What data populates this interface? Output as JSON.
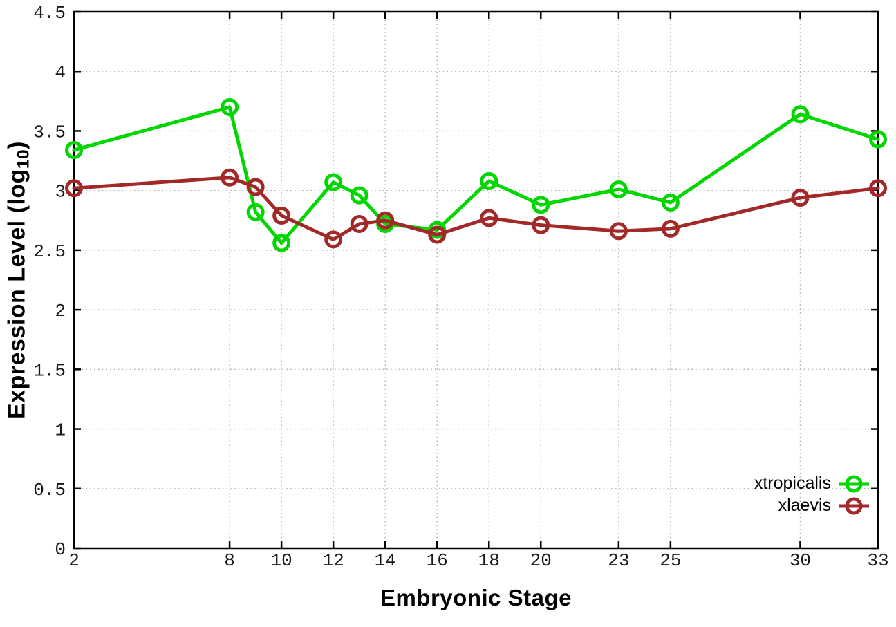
{
  "chart_data": {
    "type": "line",
    "title": "",
    "xlabel": "Embryonic Stage",
    "ylabel": "Expression Level (log10)",
    "ylabel_parts": {
      "main": "Expression Level (log",
      "sub": "10",
      "end": ")"
    },
    "xlim": [
      2,
      33
    ],
    "ylim": [
      0,
      4.5
    ],
    "grid": true,
    "legend_position": "bottom-right",
    "x": [
      2,
      8,
      9,
      10,
      12,
      13,
      14,
      16,
      18,
      20,
      23,
      25,
      30,
      33
    ],
    "x_tick_values": [
      2,
      8,
      10,
      12,
      14,
      16,
      18,
      20,
      23,
      25,
      30,
      33
    ],
    "x_tick_labels": [
      "2",
      "8",
      "10",
      "12",
      "14",
      "16",
      "18",
      "20",
      "23",
      "25",
      "30",
      "33"
    ],
    "y_tick_values": [
      0,
      0.5,
      1,
      1.5,
      2,
      2.5,
      3,
      3.5,
      4,
      4.5
    ],
    "y_tick_labels": [
      "0",
      "0.5",
      "1",
      "1.5",
      "2",
      "2.5",
      "3",
      "3.5",
      "4",
      "4.5"
    ],
    "series": [
      {
        "name": "xtropicalis",
        "color": "#00d600",
        "marker": "open-circle",
        "values": [
          3.34,
          3.7,
          2.82,
          2.56,
          3.07,
          2.96,
          2.72,
          2.67,
          3.08,
          2.88,
          3.01,
          2.9,
          3.64,
          3.43
        ]
      },
      {
        "name": "xlaevis",
        "color": "#a32929",
        "marker": "open-circle",
        "values": [
          3.02,
          3.11,
          3.03,
          2.79,
          2.59,
          2.72,
          2.75,
          2.63,
          2.77,
          2.71,
          2.66,
          2.68,
          2.94,
          3.02
        ]
      }
    ],
    "colors": {
      "grid": "#aeaeae",
      "axis": "#000000",
      "tick_text": "#1a1a1a"
    }
  }
}
